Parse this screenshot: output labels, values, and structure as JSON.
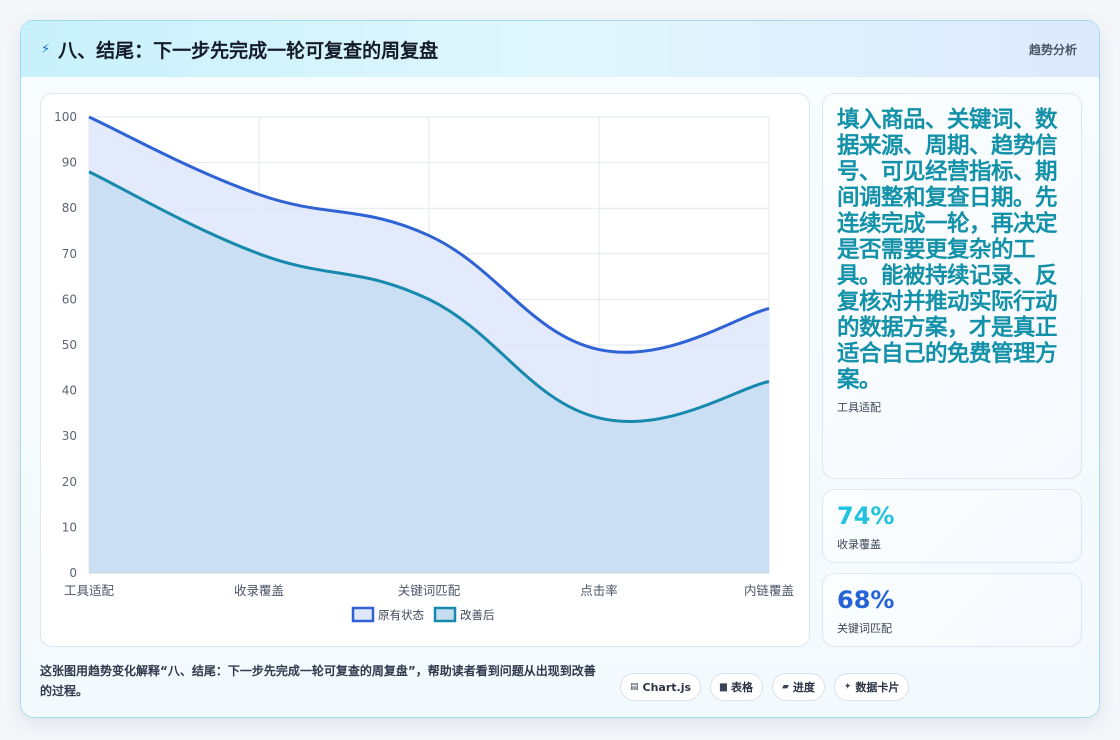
{
  "header": {
    "icon": "bolt-icon",
    "title": "八、结尾：下一步先完成一轮可复查的周复盘",
    "tag": "趋势分析"
  },
  "side_cards": [
    {
      "text": "填入商品、关键词、数据来源、周期、趋势信号、可见经营指标、期间调整和复查日期。先连续完成一轮，再决定是否需要更复杂的工具。能被持续记录、反复核对并推动实际行动的数据方案，才是真正适合自己的免费管理方案。",
      "label": "工具适配"
    },
    {
      "value": "74%",
      "label": "收录覆盖"
    },
    {
      "value": "68%",
      "label": "关键词匹配"
    }
  ],
  "footer": {
    "description": "这张图用趋势变化解释“八、结尾：下一步先完成一轮可复查的周复盘”，帮助读者看到问题从出现到改善的过程。",
    "chips": [
      {
        "icon": "chart-icon",
        "label": "Chart.js"
      },
      {
        "icon": "table-icon",
        "label": "表格"
      },
      {
        "icon": "progress-icon",
        "label": "进度"
      },
      {
        "icon": "sparkle-icon",
        "label": "数据卡片"
      }
    ]
  },
  "colors": {
    "series_before": "#2f62d4",
    "series_before_fill": "#dfe8fb",
    "series_after": "#1789ad",
    "series_after_fill": "#c5ddf1",
    "accent": "#1391a9"
  },
  "chart_data": {
    "type": "area",
    "categories": [
      "工具适配",
      "收录覆盖",
      "关键词匹配",
      "点击率",
      "内链覆盖"
    ],
    "series": [
      {
        "name": "原有状态",
        "values": [
          100,
          83,
          74,
          49,
          58
        ]
      },
      {
        "name": "改善后",
        "values": [
          88,
          70,
          60,
          34,
          42
        ]
      }
    ],
    "ylim": [
      0,
      100
    ],
    "yticks": [
      0,
      10,
      20,
      30,
      40,
      50,
      60,
      70,
      80,
      90,
      100
    ],
    "grid": true,
    "legend": "bottom"
  }
}
